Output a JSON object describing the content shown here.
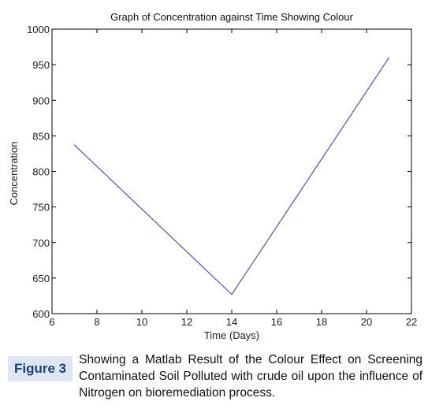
{
  "chart_data": {
    "type": "line",
    "title": "Graph of Concentration against Time Showing Colour",
    "xlabel": "Time (Days)",
    "ylabel": "Concentration",
    "xlim": [
      6,
      22
    ],
    "ylim": [
      600,
      1000
    ],
    "xticks": [
      6,
      8,
      10,
      12,
      14,
      16,
      18,
      20,
      22
    ],
    "yticks": [
      600,
      650,
      700,
      750,
      800,
      850,
      900,
      950,
      1000
    ],
    "grid": false,
    "series": [
      {
        "x": [
          7,
          14,
          21
        ],
        "y": [
          837,
          627,
          960
        ],
        "color": "#5050a8"
      }
    ]
  },
  "figure": {
    "label": "Figure 3",
    "caption": "Showing a Matlab Result of the Colour Effect on Screening Contaminated Soil Polluted with crude oil upon the influence of Nitrogen on bioremediation process."
  }
}
